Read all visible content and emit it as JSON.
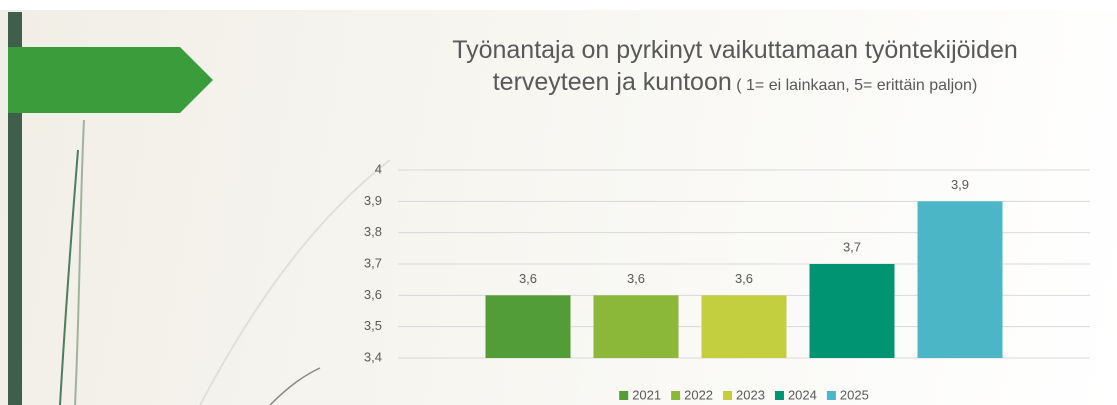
{
  "chart_data": {
    "type": "bar",
    "title": "Työnantaja on pyrkinyt vaikuttamaan työntekijöiden terveyteen ja kuntoon",
    "subtitle": "( 1= ei lainkaan, 5= erittäin paljon)",
    "categories": [
      null
    ],
    "series": [
      {
        "name": "2021",
        "color": "#529d37",
        "values": [
          3.6
        ],
        "value_labels": [
          "3,6"
        ]
      },
      {
        "name": "2022",
        "color": "#8cb83a",
        "values": [
          3.6
        ],
        "value_labels": [
          "3,6"
        ]
      },
      {
        "name": "2023",
        "color": "#c3cf3e",
        "values": [
          3.6
        ],
        "value_labels": [
          "3,6"
        ]
      },
      {
        "name": "2024",
        "color": "#009473",
        "values": [
          3.7
        ],
        "value_labels": [
          "3,7"
        ]
      },
      {
        "name": "2025",
        "color": "#4bb6c6",
        "values": [
          3.9
        ],
        "value_labels": [
          "3,9"
        ]
      }
    ],
    "ylim": [
      3.4,
      4
    ],
    "yticks": [
      {
        "value": 3.4,
        "label": "3,4"
      },
      {
        "value": 3.5,
        "label": "3,5"
      },
      {
        "value": 3.6,
        "label": "3,6"
      },
      {
        "value": 3.7,
        "label": "3,7"
      },
      {
        "value": 3.8,
        "label": "3,8"
      },
      {
        "value": 3.9,
        "label": "3,9"
      },
      4
    ],
    "grid": true,
    "legend": "bottom"
  }
}
